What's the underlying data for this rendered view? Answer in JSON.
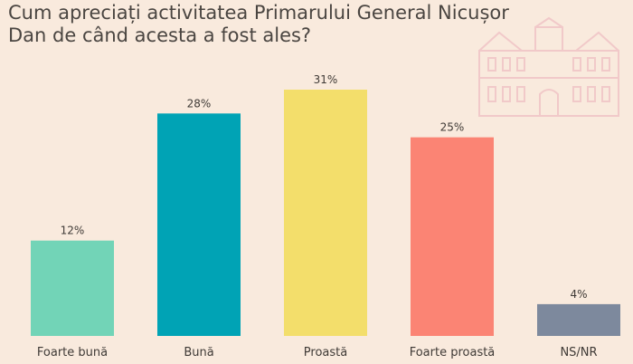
{
  "title": "Cum apreciați activitatea Primarului General Nicușor Dan de când acesta a fost ales?",
  "chart_data": {
    "type": "bar",
    "title": "Cum apreciați activitatea Primarului General Nicușor Dan de când acesta a fost ales?",
    "categories": [
      "Foarte bună",
      "Bună",
      "Proastă",
      "Foarte proastă",
      "NS/NR"
    ],
    "values": [
      12,
      28,
      31,
      25,
      4
    ],
    "value_labels": [
      "12%",
      "28%",
      "31%",
      "25%",
      "4%"
    ],
    "colors": [
      "#72d4b7",
      "#00a3b5",
      "#f3de6b",
      "#fb8474",
      "#7d899d"
    ],
    "ylim": [
      0,
      31
    ],
    "xlabel": "",
    "ylabel": "",
    "grid": false,
    "legend": "none"
  }
}
